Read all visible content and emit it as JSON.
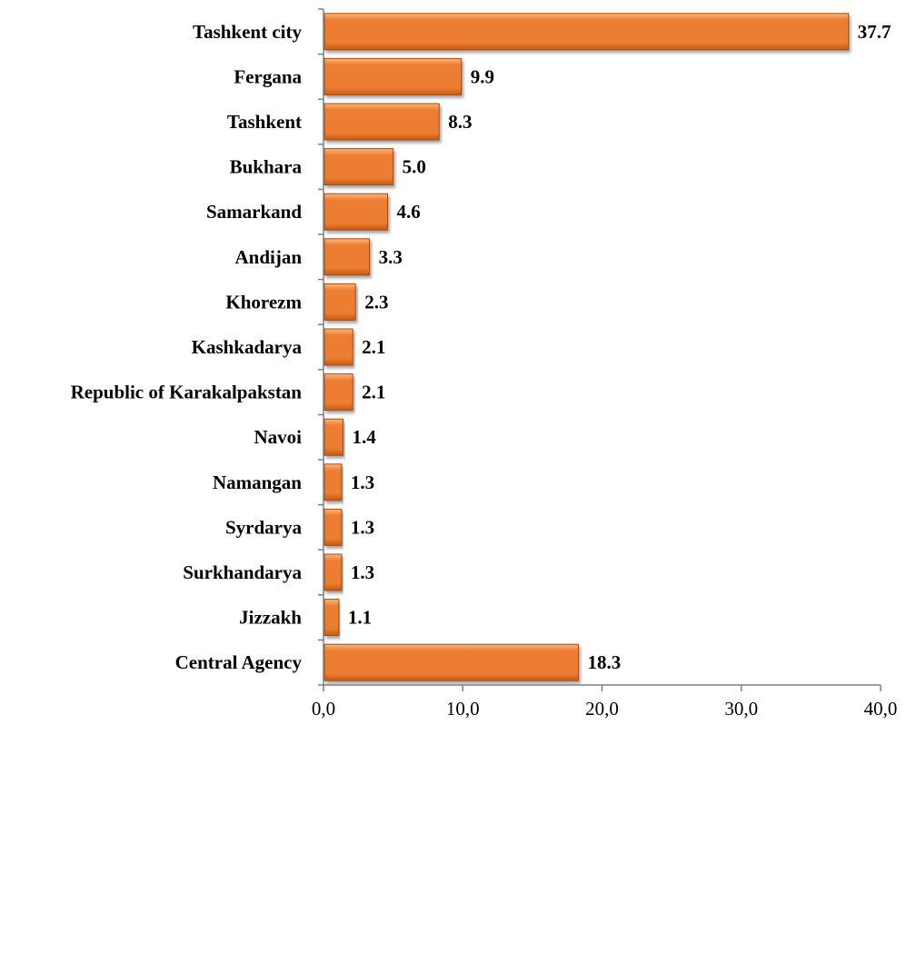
{
  "chart_data": {
    "type": "bar",
    "orientation": "horizontal",
    "title": "",
    "xlabel": "",
    "ylabel": "",
    "categories": [
      "Tashkent city",
      "Fergana",
      "Tashkent",
      "Bukhara",
      "Samarkand",
      "Andijan",
      "Khorezm",
      "Kashkadarya",
      "Republic of Karakalpakstan",
      "Navoi",
      "Namangan",
      "Syrdarya",
      "Surkhandarya",
      "Jizzakh",
      "Central Agency"
    ],
    "values": [
      37.7,
      9.9,
      8.3,
      5.0,
      4.6,
      3.3,
      2.3,
      2.1,
      2.1,
      1.4,
      1.3,
      1.3,
      1.3,
      1.1,
      18.3
    ],
    "value_labels": [
      "37.7",
      "9.9",
      "8.3",
      "5.0",
      "4.6",
      "3.3",
      "2.3",
      "2.1",
      "2.1",
      "1.4",
      "1.3",
      "1.3",
      "1.3",
      "1.1",
      "18.3"
    ],
    "xlim": [
      0,
      40
    ],
    "x_ticks": [
      0,
      10,
      20,
      30,
      40
    ],
    "x_tick_labels": [
      "0,0",
      "10,0",
      "20,0",
      "30,0",
      "40,0"
    ],
    "grid": false,
    "legend": "none",
    "colors": {
      "bar": "#ed7d31",
      "bar_light": "#f8b880",
      "bar_dark": "#c55a11",
      "bar_edge": "#a84a0c",
      "axis": "#7f7f7f"
    }
  }
}
